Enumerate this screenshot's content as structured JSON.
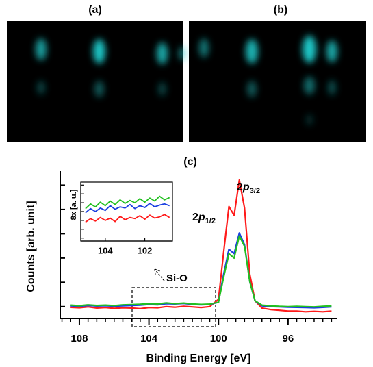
{
  "panel_labels": [
    "(a)",
    "(b)"
  ],
  "chart_data": [
    {
      "type": "line",
      "title": "(c)",
      "x_label": "Binding Energy [eV]",
      "y_label": "Counts [arb. unit]",
      "xlim": [
        109.1,
        93.2
      ],
      "xticks": [
        108,
        104,
        100,
        96
      ],
      "xminor_step": 0.5,
      "ylim": [
        0,
        10
      ],
      "yticks": [
        0.8,
        2.45,
        4.1,
        5.75,
        7.4,
        9.05
      ],
      "x": [
        108.5,
        108,
        107.5,
        107,
        106.5,
        106,
        105.5,
        105,
        104.5,
        104,
        103.5,
        103,
        102.5,
        102,
        101.5,
        101,
        100.5,
        100,
        99.7,
        99.4,
        99.1,
        98.8,
        98.5,
        98.2,
        97.9,
        97.5,
        97,
        96.5,
        96,
        95.5,
        95,
        94.5,
        94,
        93.5
      ],
      "series": [
        {
          "color": "#ff1a1a",
          "values": [
            0.75,
            0.72,
            0.78,
            0.7,
            0.74,
            0.68,
            0.72,
            0.7,
            0.66,
            0.74,
            0.72,
            0.8,
            0.76,
            0.82,
            0.78,
            0.74,
            0.8,
            1.3,
            4.5,
            7.6,
            7.0,
            9.4,
            7.5,
            3.0,
            1.2,
            0.7,
            0.6,
            0.55,
            0.5,
            0.5,
            0.45,
            0.48,
            0.45,
            0.5
          ]
        },
        {
          "color": "#1a3fe0",
          "values": [
            0.85,
            0.82,
            0.88,
            0.84,
            0.86,
            0.83,
            0.85,
            0.88,
            0.9,
            0.95,
            0.92,
            1.0,
            0.98,
            1.02,
            0.95,
            0.92,
            0.95,
            1.1,
            3.0,
            4.7,
            4.4,
            5.8,
            5.0,
            2.5,
            1.2,
            0.85,
            0.8,
            0.78,
            0.76,
            0.75,
            0.74,
            0.72,
            0.75,
            0.78
          ]
        },
        {
          "color": "#22c020",
          "values": [
            0.9,
            0.86,
            0.92,
            0.88,
            0.9,
            0.87,
            0.92,
            0.94,
            0.96,
            1.0,
            0.98,
            1.05,
            1.0,
            1.04,
            0.98,
            0.95,
            0.97,
            1.1,
            2.8,
            4.4,
            4.1,
            5.6,
            4.9,
            2.5,
            1.2,
            0.9,
            0.85,
            0.82,
            0.8,
            0.82,
            0.8,
            0.78,
            0.82,
            0.85
          ]
        }
      ],
      "annotations": [
        {
          "num": "2",
          "orbital": "p",
          "sub": "3/2"
        },
        {
          "num": "2",
          "orbital": "p",
          "sub": "1/2"
        },
        {
          "text": "Si-O"
        }
      ]
    },
    {
      "type": "line",
      "y_label": "8x [a. u.]",
      "xlim": [
        105.24,
        100.6
      ],
      "xticks": [
        104,
        102
      ],
      "ylim": [
        0,
        10
      ],
      "yticks": [
        0.5,
        2,
        3.5,
        5,
        6.5,
        8,
        9.5
      ],
      "x": [
        105.0,
        104.75,
        104.5,
        104.25,
        104.0,
        103.75,
        103.5,
        103.25,
        103.0,
        102.75,
        102.5,
        102.25,
        102.0,
        101.75,
        101.5,
        101.25,
        101.0,
        100.75
      ],
      "series": [
        {
          "color": "#22c020",
          "values": [
            5.5,
            6.3,
            5.8,
            6.6,
            6.0,
            6.8,
            6.2,
            7.0,
            6.4,
            6.9,
            6.5,
            7.2,
            6.6,
            7.3,
            6.8,
            7.6,
            7.0,
            7.4
          ]
        },
        {
          "color": "#1a3fe0",
          "values": [
            4.8,
            5.5,
            5.0,
            5.6,
            5.2,
            6.0,
            5.4,
            5.8,
            5.6,
            6.2,
            5.5,
            6.0,
            5.7,
            6.4,
            5.8,
            6.1,
            6.3,
            6.0
          ]
        },
        {
          "color": "#ff1a1a",
          "values": [
            3.2,
            3.8,
            3.4,
            4.0,
            3.5,
            3.9,
            3.3,
            4.2,
            3.6,
            4.0,
            3.8,
            4.3,
            3.7,
            4.4,
            3.9,
            4.1,
            4.5,
            4.0
          ]
        }
      ]
    }
  ]
}
